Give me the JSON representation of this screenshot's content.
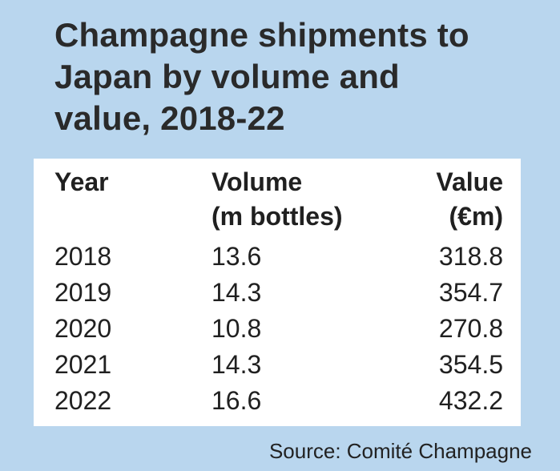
{
  "chart_data": {
    "type": "table",
    "title": "Champagne shipments to Japan by volume and value, 2018-22",
    "title_lines": [
      "Champagne shipments to",
      "Japan by volume and",
      "value, 2018-22"
    ],
    "columns": [
      {
        "lines": [
          "Year"
        ],
        "align": "left"
      },
      {
        "lines": [
          "Volume",
          "(m bottles)"
        ],
        "align": "left"
      },
      {
        "lines": [
          "Value",
          "(€m)"
        ],
        "align": "right"
      }
    ],
    "rows": [
      [
        "2018",
        "13.6",
        "318.8"
      ],
      [
        "2019",
        "14.3",
        "354.7"
      ],
      [
        "2020",
        "10.8",
        "270.8"
      ],
      [
        "2021",
        "14.3",
        "354.5"
      ],
      [
        "2022",
        "16.6",
        "432.2"
      ]
    ],
    "source": "Source: Comité Champagne",
    "colors": {
      "background": "#b9d6ee",
      "table_background": "#ffffff",
      "text": "#202020"
    }
  }
}
